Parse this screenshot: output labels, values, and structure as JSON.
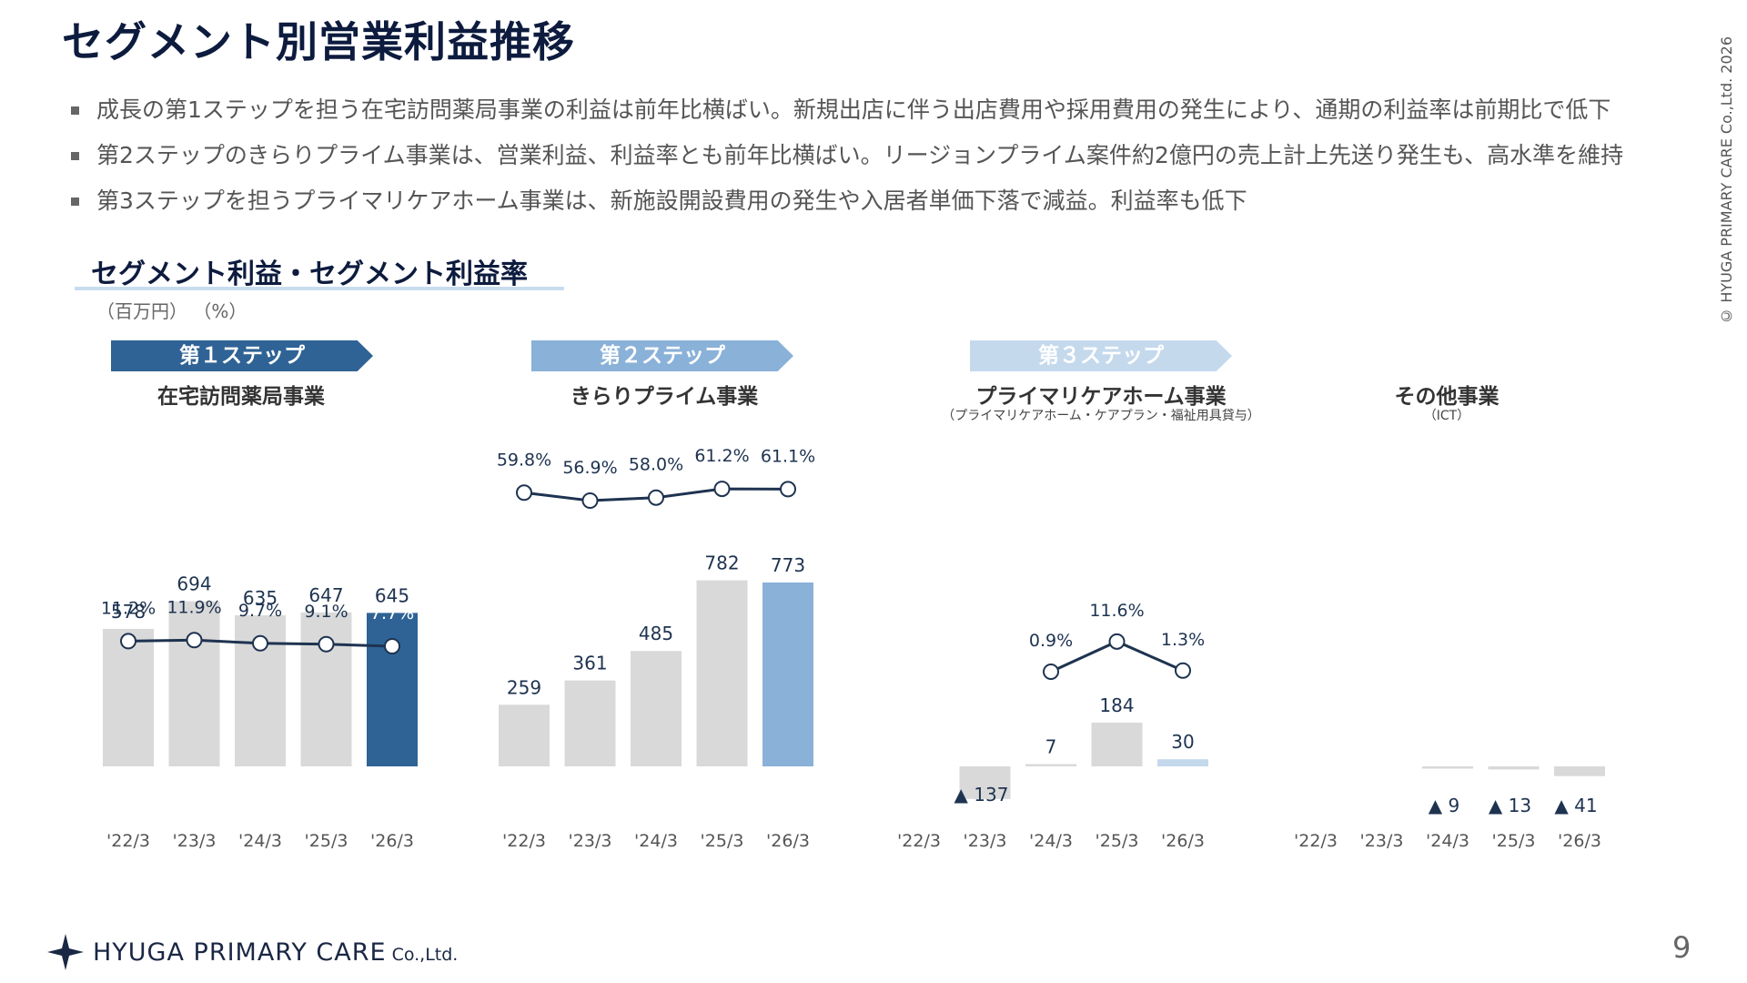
{
  "title": "セグメント別営業利益推移",
  "bullets": [
    "成長の第1ステップを担う在宅訪問薬局事業の利益は前年比横ばい。新規出店に伴う出店費用や採用費用の発生により、通期の利益率は前期比で低下",
    "第2ステップのきらりプライム事業は、営業利益、利益率とも前年比横ばい。リージョンプライム案件約2億円の売上計上先送り発生も、高水準を維持",
    "第3ステップを担うプライマリケアホーム事業は、新施設開設費用の発生や入居者単価下落で減益。利益率も低下"
  ],
  "section_title": "セグメント利益・セグメント利益率",
  "units": "（百万円） （%）",
  "steps": [
    "第１ステップ",
    "第２ステップ",
    "第３ステップ"
  ],
  "segments": [
    {
      "name": "在宅訪問薬局事業",
      "sub": ""
    },
    {
      "name": "きらりプライム事業",
      "sub": ""
    },
    {
      "name": "プライマリケアホーム事業",
      "sub": "（プライマリケアホーム・ケアプラン・福祉用具貸与）"
    },
    {
      "name": "その他事業",
      "sub": "（ICT）"
    }
  ],
  "colors": {
    "bar_past": "#d9d9d9",
    "step1": "#2f6395",
    "step2": "#8ab1d8",
    "step3": "#c5d9ed",
    "line": "#1e3350",
    "title": "#0d1b3e"
  },
  "chart_data": [
    {
      "type": "bar",
      "name": "在宅訪問薬局事業",
      "categories": [
        "'22/3",
        "'23/3",
        "'24/3",
        "'25/3",
        "'26/3"
      ],
      "values": [
        578,
        694,
        635,
        647,
        645
      ],
      "value_labels": [
        "578",
        "694",
        "635",
        "647",
        "645"
      ],
      "rate": [
        11.2,
        11.9,
        9.7,
        9.1,
        7.7
      ],
      "rate_labels": [
        "11.2%",
        "11.9%",
        "9.7%",
        "9.1%",
        "7.7%"
      ]
    },
    {
      "type": "bar",
      "name": "きらりプライム事業",
      "categories": [
        "'22/3",
        "'23/3",
        "'24/3",
        "'25/3",
        "'26/3"
      ],
      "values": [
        259,
        361,
        485,
        782,
        773
      ],
      "value_labels": [
        "259",
        "361",
        "485",
        "782",
        "773"
      ],
      "rate": [
        59.8,
        56.9,
        58.0,
        61.2,
        61.1
      ],
      "rate_labels": [
        "59.8%",
        "56.9%",
        "58.0%",
        "61.2%",
        "61.1%"
      ]
    },
    {
      "type": "bar",
      "name": "プライマリケアホーム事業",
      "categories": [
        "'22/3",
        "'23/3",
        "'24/3",
        "'25/3",
        "'26/3"
      ],
      "values": [
        null,
        -137,
        7,
        184,
        30
      ],
      "value_labels": [
        "",
        "▲ 137",
        "7",
        "184",
        "30"
      ],
      "rate": [
        null,
        null,
        0.9,
        11.6,
        1.3
      ],
      "rate_labels": [
        "",
        "",
        "0.9%",
        "11.6%",
        "1.3%"
      ]
    },
    {
      "type": "bar",
      "name": "その他事業",
      "categories": [
        "'22/3",
        "'23/3",
        "'24/3",
        "'25/3",
        "'26/3"
      ],
      "values": [
        null,
        null,
        -9,
        -13,
        -41
      ],
      "value_labels": [
        "",
        "",
        "▲ 9",
        "▲ 13",
        "▲ 41"
      ]
    }
  ],
  "footer": {
    "logo_text": "HYUGA PRIMARY CARE",
    "logo_suffix": "Co.,Ltd.",
    "page_number": "9",
    "copyright": "© HYUGA PRIMARY CARE Co.,Ltd. 2026"
  }
}
